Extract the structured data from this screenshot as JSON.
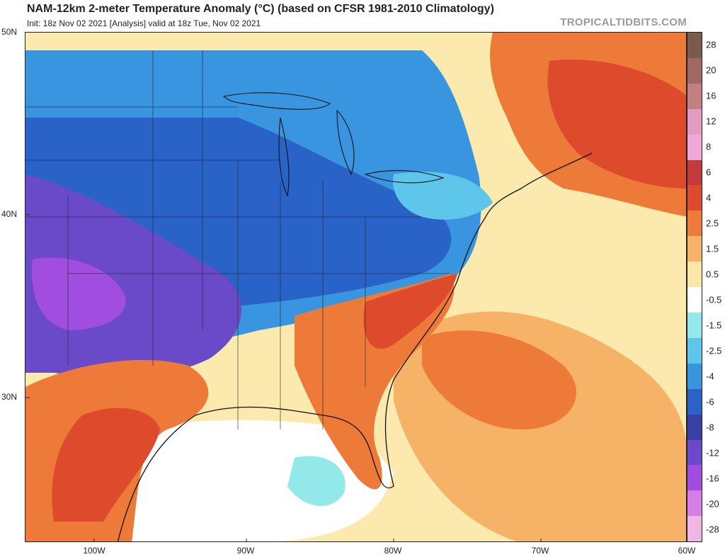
{
  "header": {
    "title": "NAM-12km 2-meter Temperature Anomaly (°C) (based on CFSR 1981-2010 Climatology)",
    "subtitle": "Init: 18z Nov 02 2021   [Analysis]   valid at 18z Tue, Nov 02 2021",
    "brand": "TROPICALTIDBITS.COM"
  },
  "axes": {
    "lat_labels": [
      "50N",
      "40N",
      "30N"
    ],
    "lon_labels": [
      "100W",
      "90W",
      "80W",
      "70W",
      "60W"
    ]
  },
  "colorbar": {
    "labels": [
      "28",
      "20",
      "16",
      "12",
      "8",
      "6",
      "4",
      "2.5",
      "1.5",
      "0.5",
      "-0.5",
      "-1.5",
      "-2.5",
      "-4",
      "-6",
      "-8",
      "-12",
      "-16",
      "-20",
      "-28"
    ],
    "colors": [
      "#7a5a4a",
      "#a06a62",
      "#c47f83",
      "#e49bbf",
      "#f2a6d6",
      "#c23a3a",
      "#dd4a2c",
      "#ee7a3a",
      "#f6b266",
      "#fbe6a6",
      "#ffffff",
      "#93e8ea",
      "#5ec6ea",
      "#3a95e0",
      "#2a63c8",
      "#3a3fa8",
      "#6a4ac8",
      "#a14ee0",
      "#d77de6",
      "#f1b6e6"
    ]
  },
  "map_legend_colors": {
    "warm_strong": "#dd4a2c",
    "warm": "#ee7a3a",
    "warm_light": "#f6b266",
    "warm_pale": "#fbe6a6",
    "neutral": "#ffffff",
    "cool_pale": "#93e8ea",
    "cool": "#5ec6ea",
    "cool_mid": "#3a95e0",
    "cold": "#2a63c8",
    "very_cold": "#3a3fa8",
    "purple": "#6a4ac8"
  }
}
